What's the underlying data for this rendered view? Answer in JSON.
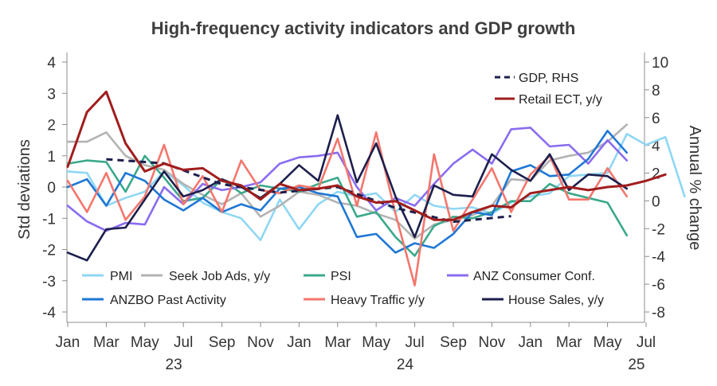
{
  "chart_data": {
    "type": "line",
    "title": "High-frequency activity indicators and GDP growth",
    "ylabel_left": "Std deviations",
    "ylabel_right": "Annual % change",
    "ylim_left": [
      -4,
      4
    ],
    "ylim_right": [
      -8,
      10
    ],
    "yticks_left": [
      "4",
      "3",
      "2",
      "1",
      "0",
      "-1",
      "-2",
      "-3",
      "-4"
    ],
    "yticks_right": [
      "10",
      "8",
      "6",
      "4",
      "2",
      "0",
      "-2",
      "-4",
      "-6",
      "-8"
    ],
    "x_month_labels": [
      "Jan",
      "Mar",
      "May",
      "Jul",
      "Sep",
      "Nov",
      "Jan",
      "Mar",
      "May",
      "Jul",
      "Sep",
      "Nov",
      "Jan",
      "Mar",
      "May",
      "Jul"
    ],
    "x_year_labels": [
      "23",
      "24",
      "25"
    ],
    "x_start": "2023-01",
    "grid": false,
    "legend_position": "inside",
    "series": [
      {
        "name": "PMI",
        "color": "#8fd7f5",
        "axis": "left",
        "style": "solid",
        "values": [
          0.5,
          0.45,
          -0.6,
          -0.35,
          -0.15,
          0.5,
          0.05,
          -0.5,
          -0.8,
          -1.0,
          -1.7,
          -0.4,
          -1.35,
          -0.55,
          -0.15,
          -0.3,
          -0.2,
          -0.8,
          -0.25,
          -0.6,
          -0.7,
          -0.65,
          -0.85,
          -0.5,
          -0.3,
          -0.2,
          0.35,
          0.4,
          0.45,
          1.7,
          1.35,
          1.6,
          -0.3
        ]
      },
      {
        "name": "Seek Job Ads, y/y",
        "color": "#b3b3b3",
        "axis": "left",
        "style": "solid",
        "values": [
          1.45,
          1.45,
          1.75,
          1.0,
          0.7,
          0.55,
          0.1,
          -0.25,
          -0.55,
          -0.2,
          -0.95,
          -0.6,
          -0.15,
          -0.25,
          -0.5,
          -0.6,
          -0.85,
          -1.05,
          -1.65,
          -1.2,
          -1.05,
          -0.9,
          -0.6,
          0.25,
          0.2,
          0.85,
          1.0,
          1.1,
          1.45,
          2.0
        ]
      },
      {
        "name": "PSI",
        "color": "#3aa98b",
        "axis": "left",
        "style": "solid",
        "values": [
          0.75,
          0.85,
          0.8,
          -0.15,
          1.0,
          0.3,
          -0.45,
          -0.35,
          0.25,
          -0.2,
          0.05,
          -0.05,
          -0.15,
          0.1,
          0.3,
          -0.95,
          -0.8,
          -1.6,
          -2.2,
          -1.25,
          -0.95,
          -1.0,
          -0.8,
          -0.45,
          -0.45,
          0.1,
          -0.2,
          -0.35,
          -0.5,
          -1.55
        ]
      },
      {
        "name": "ANZ Consumer Conf.",
        "color": "#8a6cf0",
        "axis": "left",
        "style": "solid",
        "values": [
          -0.6,
          -1.1,
          -1.4,
          -1.15,
          -1.2,
          0.0,
          -0.55,
          0.1,
          -0.1,
          0.0,
          0.15,
          0.75,
          0.95,
          1.0,
          1.1,
          0.0,
          -0.75,
          -0.35,
          -0.6,
          0.1,
          0.75,
          1.2,
          0.75,
          1.85,
          1.9,
          1.3,
          1.35,
          0.75,
          1.5,
          0.85
        ]
      },
      {
        "name": "ANZBO Past Activity",
        "color": "#1f77d4",
        "axis": "left",
        "style": "solid",
        "values": [
          0.0,
          0.25,
          -0.6,
          0.45,
          0.2,
          -0.4,
          -0.75,
          -0.35,
          -0.8,
          -0.55,
          -0.75,
          -0.05,
          0.0,
          -0.2,
          -0.3,
          -1.6,
          -1.5,
          -2.1,
          -1.8,
          -1.95,
          -1.5,
          -0.8,
          -0.9,
          0.5,
          0.7,
          0.35,
          0.4,
          0.9,
          1.8,
          1.1
        ]
      },
      {
        "name": "Heavy Traffic y/y",
        "color": "#f4766d",
        "axis": "left",
        "style": "solid",
        "values": [
          0.2,
          -0.8,
          0.45,
          -1.05,
          -0.3,
          1.35,
          -0.55,
          0.35,
          -0.8,
          0.85,
          -0.1,
          -0.2,
          0.05,
          -0.05,
          1.55,
          -0.6,
          1.75,
          -0.85,
          -3.15,
          1.05,
          -1.4,
          -0.4,
          0.6,
          -0.8,
          0.4,
          1.0,
          -0.4,
          -0.4,
          0.6,
          -0.3
        ]
      },
      {
        "name": "House Sales, y/y",
        "color": "#1c1f4d",
        "axis": "left",
        "style": "solid",
        "values": [
          -2.1,
          -2.35,
          -1.35,
          -1.3,
          -0.4,
          0.5,
          -0.3,
          -0.1,
          0.25,
          0.0,
          -0.35,
          0.1,
          0.7,
          0.2,
          2.3,
          0.15,
          1.4,
          -0.3,
          -1.6,
          0.05,
          -0.25,
          -0.3,
          1.05,
          0.55,
          0.2,
          1.05,
          -0.1,
          0.4,
          0.35,
          -0.05
        ]
      },
      {
        "name": "GDP, RHS",
        "color": "#1c1f4d",
        "axis": "right",
        "style": "dashed",
        "months": [
          2,
          5,
          8,
          11,
          14,
          17,
          20,
          23
        ],
        "values": [
          3.0,
          2.7,
          1.2,
          0.6,
          1.0,
          -0.5,
          -1.5,
          -1.1
        ]
      },
      {
        "name": "Retail ECT, y/y",
        "color": "#a11d1d",
        "axis": "left",
        "style": "solid",
        "values": [
          0.65,
          2.4,
          3.05,
          1.4,
          0.5,
          0.75,
          0.55,
          0.6,
          0.2,
          0.05,
          -0.4,
          0.1,
          -0.1,
          -0.05,
          0.05,
          -0.3,
          -0.5,
          -0.45,
          -0.75,
          -1.05,
          -1.05,
          -0.8,
          -0.6,
          -0.65,
          -0.2,
          -0.1,
          0.0,
          -0.1,
          0.0,
          0.05,
          0.2,
          0.4
        ]
      }
    ]
  },
  "legend": {
    "gdp": "GDP, RHS",
    "retail": "Retail ECT, y/y",
    "pmi": "PMI",
    "seek": "Seek Job Ads, y/y",
    "psi": "PSI",
    "anz_conf": "ANZ Consumer Conf.",
    "anzbo": "ANZBO Past Activity",
    "traffic": "Heavy Traffic y/y",
    "house": "House Sales, y/y"
  }
}
